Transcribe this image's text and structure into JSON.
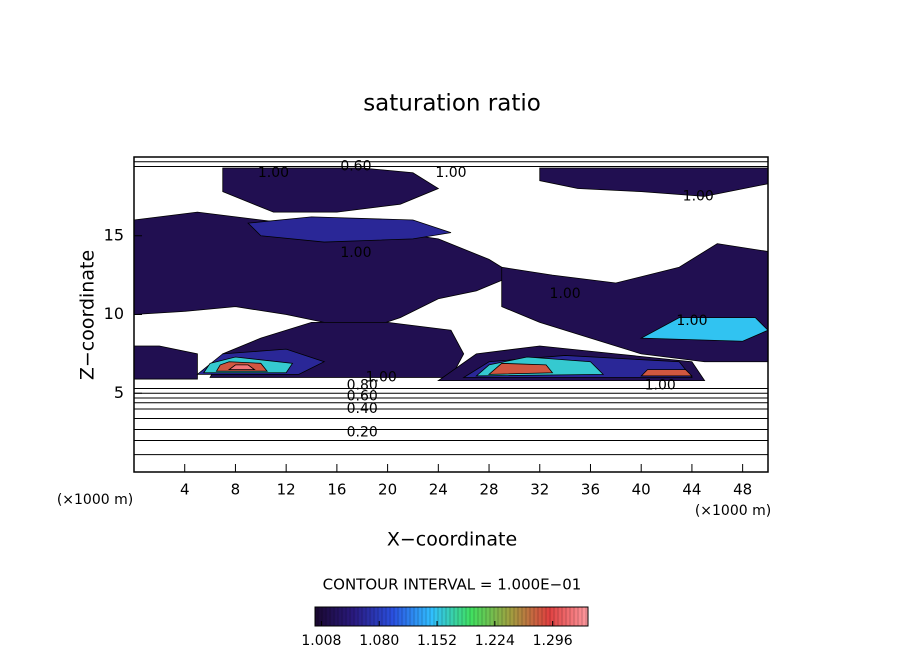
{
  "chart_data": {
    "type": "contour",
    "title": "saturation ratio",
    "xlabel": "X−coordinate",
    "ylabel": "Z−coordinate",
    "x_unit": "(×1000 m)",
    "y_unit": "(×1000 m)",
    "xlim": [
      0,
      50
    ],
    "ylim": [
      0,
      20
    ],
    "xticks": [
      4,
      8,
      12,
      16,
      20,
      24,
      28,
      32,
      36,
      40,
      44,
      48
    ],
    "yticks": [
      5,
      10,
      15
    ],
    "contour_interval": "CONTOUR INTERVAL = 1.000E−01",
    "clim": [
      1.0,
      1.34
    ],
    "colormap": [
      "#1a0830",
      "#2a1a80",
      "#2a50e0",
      "#30c0ff",
      "#40e060",
      "#a0a040",
      "#e04040",
      "#ff9aa0"
    ],
    "cticks": [
      1.008,
      {
        "value": 1.08,
        "label": "1.080"
      },
      1.152,
      1.224,
      1.296
    ],
    "regions": [
      {
        "level": 1.02,
        "x": [
          0,
          5,
          12,
          18,
          24,
          28,
          30,
          27,
          24,
          21,
          18,
          15,
          12,
          8,
          4,
          0
        ],
        "z": [
          16,
          16.5,
          15.8,
          15.5,
          14.8,
          13.5,
          12.5,
          11.5,
          11,
          9.8,
          9,
          9.5,
          10,
          10.5,
          10.2,
          10
        ]
      },
      {
        "level": 1.02,
        "x": [
          7,
          18,
          22,
          24,
          21,
          16,
          11,
          7
        ],
        "z": [
          19.3,
          19.3,
          19,
          18,
          17,
          16.5,
          16.5,
          17.8
        ]
      },
      {
        "level": 1.02,
        "x": [
          32,
          50,
          50,
          45,
          40,
          35,
          32
        ],
        "z": [
          19.3,
          19.3,
          18.3,
          17.5,
          17.8,
          18,
          18.5
        ]
      },
      {
        "level": 1.02,
        "x": [
          29,
          33,
          38,
          43,
          46,
          50,
          50,
          45,
          40,
          36,
          32,
          29
        ],
        "z": [
          13,
          12.5,
          12,
          13,
          14.5,
          14,
          7,
          7,
          7.5,
          8.5,
          9.5,
          10.5
        ]
      },
      {
        "level": 1.02,
        "x": [
          6,
          25,
          26,
          25,
          20,
          14,
          10,
          7
        ],
        "z": [
          6,
          6,
          7.5,
          9,
          9.5,
          9.5,
          8.5,
          7.5
        ]
      },
      {
        "level": 1.02,
        "x": [
          24,
          45,
          44,
          38,
          32,
          27
        ],
        "z": [
          5.8,
          5.8,
          7,
          7.5,
          8,
          7.5
        ]
      },
      {
        "level": 1.02,
        "x": [
          0,
          5,
          5,
          2,
          0
        ],
        "z": [
          5.9,
          5.9,
          7.5,
          8,
          8
        ]
      },
      {
        "level": 1.06,
        "x": [
          9,
          14,
          22,
          25,
          22,
          15,
          10
        ],
        "z": [
          15.8,
          16.2,
          16,
          15.2,
          14.8,
          14.6,
          15
        ]
      },
      {
        "level": 1.06,
        "x": [
          5,
          13,
          15,
          12,
          7
        ],
        "z": [
          6.2,
          6.2,
          7,
          7.8,
          7.5
        ]
      },
      {
        "level": 1.06,
        "x": [
          26,
          44,
          43,
          34,
          28
        ],
        "z": [
          6,
          6,
          7,
          7.4,
          7
        ]
      },
      {
        "level": 1.15,
        "x": [
          40,
          48,
          50,
          49,
          43
        ],
        "z": [
          8.5,
          8.3,
          9,
          9.8,
          9.8
        ]
      },
      {
        "level": 1.16,
        "x": [
          5.5,
          12,
          12.5,
          8,
          6
        ],
        "z": [
          6.3,
          6.3,
          6.9,
          7.3,
          6.9
        ]
      },
      {
        "level": 1.16,
        "x": [
          27,
          37,
          36,
          31,
          28
        ],
        "z": [
          6.1,
          6.2,
          7,
          7.3,
          6.8
        ]
      },
      {
        "level": 1.28,
        "x": [
          6.5,
          10.5,
          10,
          7.5,
          6.8
        ],
        "z": [
          6.4,
          6.4,
          6.9,
          7,
          6.8
        ]
      },
      {
        "level": 1.28,
        "x": [
          28,
          33,
          32.5,
          29
        ],
        "z": [
          6.2,
          6.3,
          6.8,
          6.9
        ]
      },
      {
        "level": 1.28,
        "x": [
          40,
          44,
          43.5,
          40.5
        ],
        "z": [
          6.1,
          6.1,
          6.5,
          6.5
        ]
      },
      {
        "level": 1.32,
        "x": [
          7.5,
          9.5,
          9,
          8
        ],
        "z": [
          6.5,
          6.5,
          6.8,
          6.8
        ]
      }
    ],
    "contour_lines": [
      {
        "level": 0.1,
        "z": 1.1
      },
      {
        "level": 0.2,
        "z": 2.0
      },
      {
        "level": 0.3,
        "z": 2.7
      },
      {
        "level": 0.4,
        "z": 3.4
      },
      {
        "level": 0.5,
        "z": 4.0
      },
      {
        "level": 0.6,
        "z": 4.4
      },
      {
        "level": 0.7,
        "z": 4.7
      },
      {
        "level": 0.8,
        "z": 5.0
      },
      {
        "level": 0.9,
        "z": 5.3
      },
      {
        "level": 0.8,
        "z": 19.4
      },
      {
        "level": 0.6,
        "z": 19.7
      }
    ],
    "annotations": [
      {
        "text": "0.20",
        "x": 18,
        "z": 2.5
      },
      {
        "text": "0.40",
        "x": 18,
        "z": 4.0
      },
      {
        "text": "0.60",
        "x": 18,
        "z": 4.8
      },
      {
        "text": "0.80",
        "x": 18,
        "z": 5.5
      },
      {
        "text": "1.00",
        "x": 19.5,
        "z": 6.0
      },
      {
        "text": "1.00",
        "x": 17.5,
        "z": 13.9
      },
      {
        "text": "1.00",
        "x": 34,
        "z": 11.3
      },
      {
        "text": "1.00",
        "x": 44,
        "z": 9.6
      },
      {
        "text": "1.00",
        "x": 41.5,
        "z": 5.5
      },
      {
        "text": "1.00",
        "x": 44.5,
        "z": 17.5
      },
      {
        "text": "1.00",
        "x": 25,
        "z": 19
      },
      {
        "text": "1.00",
        "x": 11,
        "z": 19
      },
      {
        "text": "0.60",
        "x": 17.5,
        "z": 19.4
      }
    ]
  }
}
